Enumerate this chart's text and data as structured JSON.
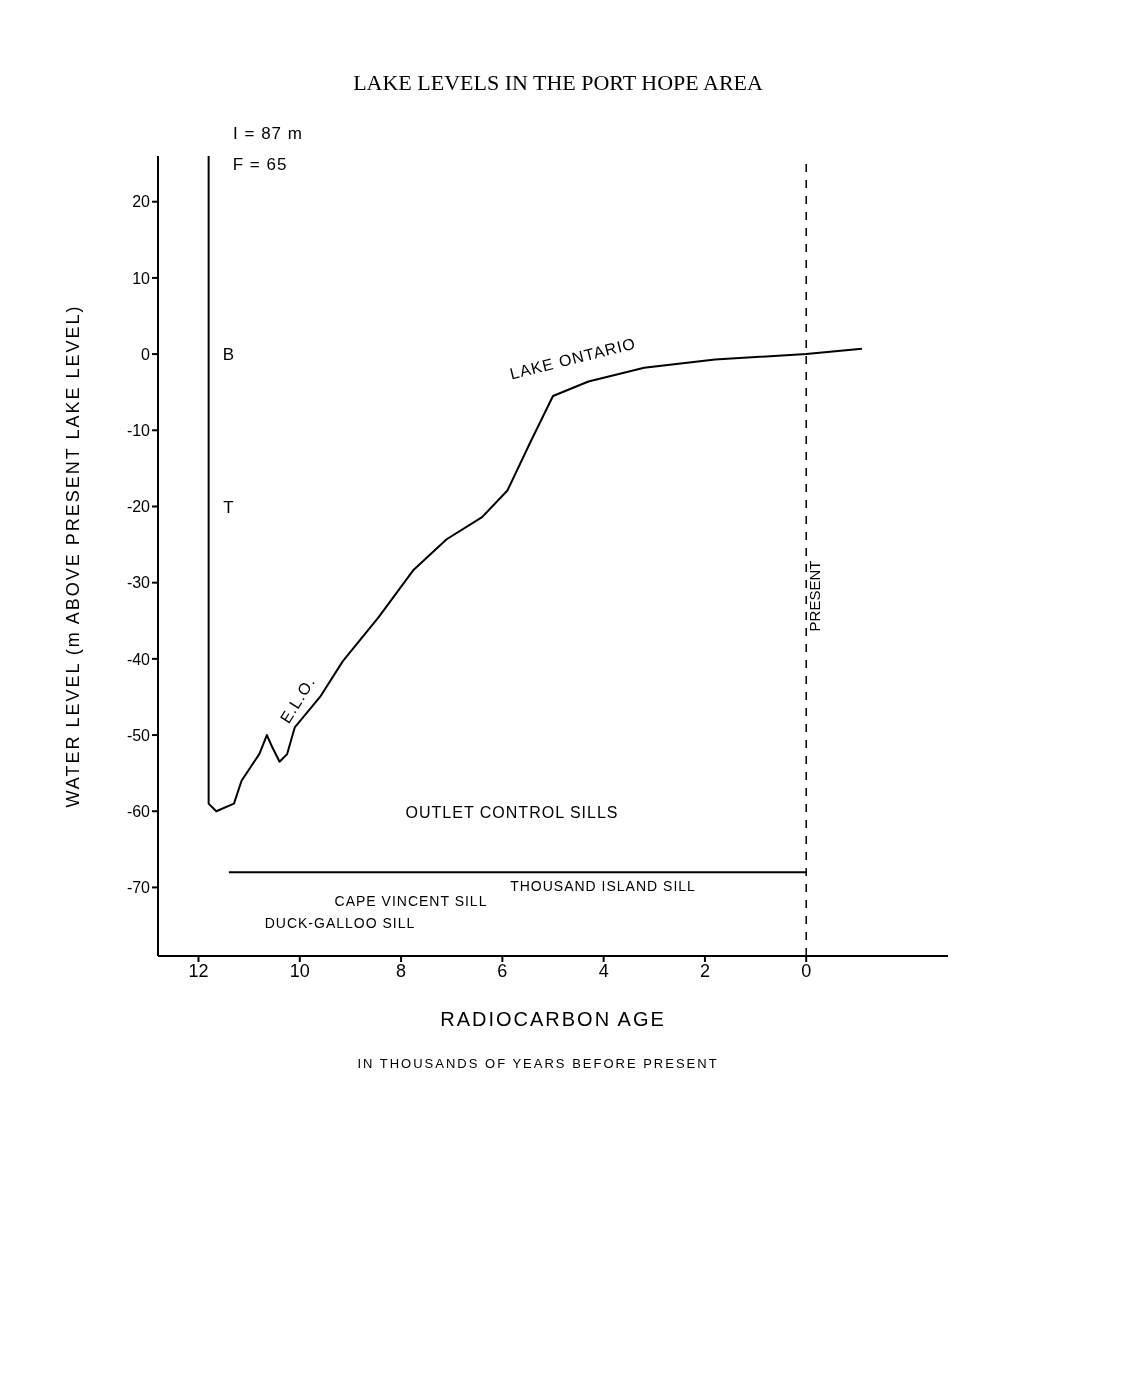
{
  "chart_data": {
    "type": "line",
    "title": "LAKE LEVELS IN THE PORT HOPE AREA",
    "xlabel": "RADIOCARBON AGE",
    "ylabel": "WATER LEVEL (m ABOVE PRESENT LAKE LEVEL)",
    "xlim": [
      12.8,
      -2.8
    ],
    "xticks": [
      12,
      10,
      8,
      6,
      4,
      2,
      0
    ],
    "ylim": [
      -79,
      26
    ],
    "yticks": [
      20,
      10,
      0,
      -10,
      -20,
      -30,
      -40,
      -50,
      -60,
      -70
    ],
    "marker": "none",
    "line_style": "solid",
    "series": [
      {
        "color": "#000000",
        "x": [
          11.8,
          11.8,
          11.8,
          11.8,
          11.65,
          11.3,
          11.15,
          10.8,
          10.65,
          10.55,
          10.4,
          10.25,
          10.1,
          9.6,
          9.15,
          8.45,
          7.75,
          7.1,
          6.4,
          5.9,
          5.45,
          5.0,
          4.3,
          3.2,
          1.8,
          0,
          -1.1
        ],
        "values": [
          26,
          -1,
          -19.5,
          -59,
          -60,
          -59,
          -56,
          -52.5,
          -50,
          -51.5,
          -53.5,
          -52.5,
          -49,
          -45,
          -40.3,
          -34.6,
          -28.3,
          -24.3,
          -21.4,
          -17.9,
          -11.6,
          -5.5,
          -3.6,
          -1.8,
          -0.7,
          0,
          0.7
        ]
      },
      {
        "color": "#000000",
        "x": [
          11.4,
          10.8,
          9.0,
          0
        ],
        "values": [
          -68,
          -68,
          -68,
          -68
        ]
      }
    ],
    "ref_lines": [
      {
        "axis": "x",
        "value": 0,
        "label": "PRESENT",
        "line_style": "dashed",
        "color": "#000000"
      }
    ],
    "annotations": [
      "I = 87 m",
      "F = 65",
      "B",
      "T",
      "E.L.O.",
      "LAKE ONTARIO",
      "OUTLET CONTROL SILLS",
      "THOUSAND ISLAND SILL",
      "CAPE VINCENT SILL",
      "DUCK-GALLOO SILL",
      "IN THOUSANDS OF YEARS BEFORE PRESENT"
    ]
  }
}
